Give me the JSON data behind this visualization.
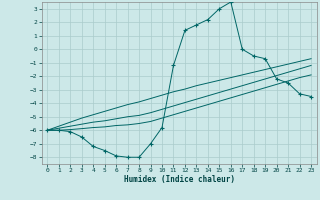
{
  "xlabel": "Humidex (Indice chaleur)",
  "background_color": "#cce8e8",
  "grid_color": "#aacccc",
  "line_color": "#006666",
  "xlim": [
    -0.5,
    23.5
  ],
  "ylim": [
    -8.5,
    3.5
  ],
  "x_ticks": [
    0,
    1,
    2,
    3,
    4,
    5,
    6,
    7,
    8,
    9,
    10,
    11,
    12,
    13,
    14,
    15,
    16,
    17,
    18,
    19,
    20,
    21,
    22,
    23
  ],
  "y_ticks": [
    3,
    2,
    1,
    0,
    -1,
    -2,
    -3,
    -4,
    -5,
    -6,
    -7,
    -8
  ],
  "humidex_x": [
    0,
    1,
    2,
    3,
    4,
    5,
    6,
    7,
    8,
    9,
    10,
    11,
    12,
    13,
    14,
    15,
    16,
    17,
    18,
    19,
    20,
    21,
    22,
    23
  ],
  "main_y": [
    -6.0,
    -6.0,
    -6.1,
    -6.5,
    -7.2,
    -7.5,
    -7.9,
    -8.0,
    -8.0,
    -7.0,
    -5.8,
    -1.2,
    1.4,
    1.8,
    2.2,
    3.0,
    3.5,
    0.0,
    -0.5,
    -0.7,
    -2.2,
    -2.5,
    -3.3,
    -3.5
  ],
  "line2_y": [
    -6.0,
    -6.0,
    -5.95,
    -5.88,
    -5.8,
    -5.75,
    -5.65,
    -5.6,
    -5.5,
    -5.35,
    -5.1,
    -4.85,
    -4.6,
    -4.35,
    -4.1,
    -3.85,
    -3.6,
    -3.35,
    -3.1,
    -2.85,
    -2.6,
    -2.35,
    -2.1,
    -1.9
  ],
  "line3_y": [
    -6.0,
    -5.85,
    -5.7,
    -5.55,
    -5.4,
    -5.3,
    -5.15,
    -5.0,
    -4.9,
    -4.7,
    -4.45,
    -4.2,
    -3.95,
    -3.7,
    -3.45,
    -3.2,
    -2.95,
    -2.7,
    -2.45,
    -2.2,
    -1.95,
    -1.7,
    -1.45,
    -1.2
  ],
  "line4_y": [
    -6.0,
    -5.7,
    -5.4,
    -5.1,
    -4.85,
    -4.6,
    -4.35,
    -4.1,
    -3.9,
    -3.65,
    -3.4,
    -3.15,
    -2.95,
    -2.7,
    -2.5,
    -2.3,
    -2.1,
    -1.9,
    -1.7,
    -1.5,
    -1.3,
    -1.1,
    -0.9,
    -0.7
  ]
}
